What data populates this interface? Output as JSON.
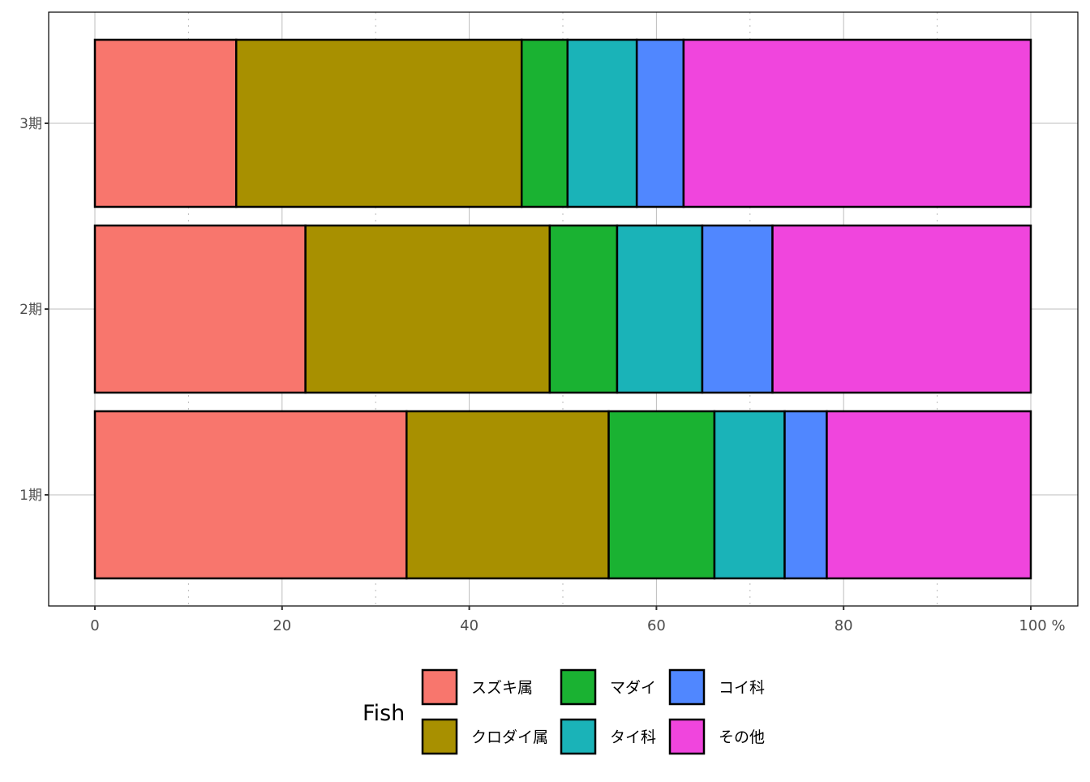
{
  "chart_data": {
    "type": "bar",
    "orientation": "horizontal",
    "stacked": true,
    "categories": [
      "1期",
      "2期",
      "3期"
    ],
    "xlim": [
      0,
      100
    ],
    "x_ticks": [
      "0",
      "20",
      "40",
      "60",
      "80",
      "100 %"
    ],
    "x_tick_values": [
      0,
      20,
      40,
      60,
      80,
      100
    ],
    "grid": true,
    "legend": {
      "title": "Fish",
      "placement": "bottom"
    },
    "series": [
      {
        "name": "スズキ属",
        "color": "#F564E3",
        "fill": "#F8766D",
        "values": [
          33.3,
          22.5,
          15.1
        ]
      },
      {
        "name": "クロダイ属",
        "fill": "#A89000",
        "values": [
          21.6,
          26.1,
          30.5
        ]
      },
      {
        "name": "マダイ",
        "fill": "#1AB232",
        "values": [
          11.3,
          7.2,
          4.9
        ]
      },
      {
        "name": "タイ科",
        "fill": "#1AB3B8",
        "values": [
          7.5,
          9.1,
          7.4
        ]
      },
      {
        "name": "コイ科",
        "fill": "#5087FF",
        "values": [
          4.5,
          7.5,
          5.0
        ]
      },
      {
        "name": "その他",
        "fill": "#F045DD",
        "values": [
          21.8,
          27.6,
          37.1
        ]
      }
    ]
  }
}
